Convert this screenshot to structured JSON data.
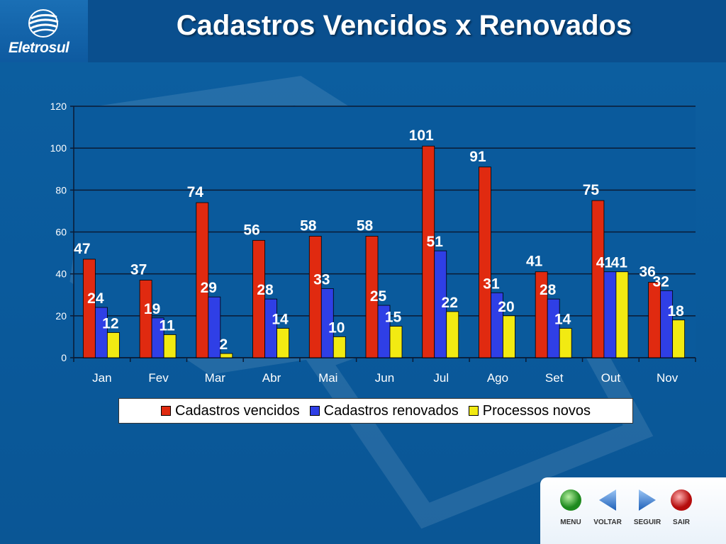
{
  "header": {
    "logo_text": "Eletrosul",
    "title": "Cadastros Vencidos x Renovados"
  },
  "chart_data": {
    "type": "bar",
    "title": "",
    "xlabel": "",
    "ylabel": "",
    "ylim": [
      0,
      120
    ],
    "yticks": [
      0,
      20,
      40,
      60,
      80,
      100,
      120
    ],
    "grid": true,
    "legend_position": "bottom",
    "categories": [
      "Jan",
      "Fev",
      "Mar",
      "Abr",
      "Mai",
      "Jun",
      "Jul",
      "Ago",
      "Set",
      "Out",
      "Nov"
    ],
    "series": [
      {
        "name": "Cadastros vencidos",
        "color": "#e02a10",
        "values": [
          47,
          37,
          74,
          56,
          58,
          58,
          101,
          91,
          41,
          75,
          36
        ]
      },
      {
        "name": "Cadastros renovados",
        "color": "#2f3fe6",
        "values": [
          24,
          19,
          29,
          28,
          33,
          25,
          51,
          31,
          28,
          41,
          32
        ]
      },
      {
        "name": "Processos novos",
        "color": "#f2ea12",
        "values": [
          12,
          11,
          2,
          14,
          10,
          15,
          22,
          20,
          14,
          41,
          18
        ]
      }
    ]
  },
  "nav": {
    "menu": "MENU",
    "back": "VOLTAR",
    "next": "SEGUIR",
    "exit": "SAIR"
  }
}
